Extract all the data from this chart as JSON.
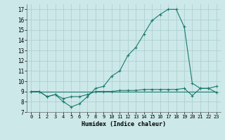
{
  "title": "",
  "xlabel": "Humidex (Indice chaleur)",
  "ylabel": "",
  "xlim": [
    -0.5,
    23.5
  ],
  "ylim": [
    7,
    17.5
  ],
  "yticks": [
    7,
    8,
    9,
    10,
    11,
    12,
    13,
    14,
    15,
    16,
    17
  ],
  "xticks": [
    0,
    1,
    2,
    3,
    4,
    5,
    6,
    7,
    8,
    9,
    10,
    11,
    12,
    13,
    14,
    15,
    16,
    17,
    18,
    19,
    20,
    21,
    22,
    23
  ],
  "background_color": "#cce8e8",
  "grid_color": "#aacccc",
  "line_color": "#1a7a6e",
  "line1_x": [
    0,
    1,
    2,
    3,
    4,
    5,
    6,
    7,
    8,
    9,
    10,
    11,
    12,
    13,
    14,
    15,
    16,
    17,
    18,
    19,
    20,
    21,
    22,
    23
  ],
  "line1_y": [
    9.0,
    9.0,
    8.5,
    8.7,
    8.0,
    7.5,
    7.8,
    8.5,
    9.3,
    9.5,
    10.5,
    11.0,
    12.5,
    13.3,
    14.6,
    15.9,
    16.5,
    17.0,
    17.0,
    15.3,
    9.8,
    9.3,
    9.3,
    9.5
  ],
  "line2_x": [
    0,
    1,
    2,
    3,
    4,
    5,
    6,
    7,
    8,
    9,
    10,
    11,
    12,
    13,
    14,
    15,
    16,
    17,
    18,
    19,
    20,
    21,
    22,
    23
  ],
  "line2_y": [
    9.0,
    9.0,
    8.5,
    8.7,
    8.3,
    8.5,
    8.5,
    8.7,
    9.0,
    9.0,
    9.0,
    9.1,
    9.1,
    9.1,
    9.2,
    9.2,
    9.2,
    9.2,
    9.2,
    9.3,
    8.6,
    9.3,
    9.3,
    8.9
  ],
  "line3_x": [
    0,
    1,
    2,
    3,
    4,
    5,
    6,
    7,
    8,
    9,
    10,
    11,
    12,
    13,
    14,
    15,
    16,
    17,
    18,
    19,
    20,
    21,
    22,
    23
  ],
  "line3_y": [
    9.0,
    9.0,
    9.0,
    9.0,
    9.0,
    9.0,
    9.0,
    9.0,
    9.0,
    9.0,
    9.0,
    9.0,
    9.0,
    9.0,
    9.0,
    9.0,
    9.0,
    9.0,
    9.0,
    9.0,
    9.0,
    9.0,
    9.0,
    9.0
  ],
  "marker": "+",
  "markersize": 3,
  "linewidth": 0.8
}
